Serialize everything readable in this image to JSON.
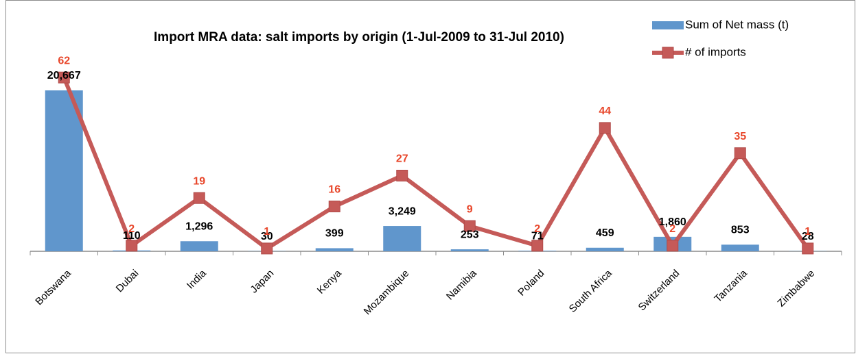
{
  "chart_data": {
    "type": "combo",
    "title": "Import MRA data: salt imports by origin (1-Jul-2009 to 31-Jul 2010)",
    "categories": [
      "Botswana",
      "Dubai",
      "India",
      "Japan",
      "Kenya",
      "Mozambique",
      "Namibia",
      "Poland",
      "South Africa",
      "Switzerland",
      "Tanzania",
      "Zimbabwe"
    ],
    "series": [
      {
        "name": "Sum of Net mass (t)",
        "type": "bar",
        "color": "#6096cc",
        "values": [
          20667,
          110,
          1296,
          30,
          399,
          3249,
          253,
          71,
          459,
          1860,
          853,
          28
        ],
        "value_labels": [
          "20,667",
          "110",
          "1,296",
          "30",
          "399",
          "3,249",
          "253",
          "71",
          "459",
          "1,860",
          "853",
          "28"
        ]
      },
      {
        "name": "# of imports",
        "type": "line",
        "axis": "y2",
        "color": "#c55a58",
        "label_color": "#e8462a",
        "values": [
          62,
          2,
          19,
          1,
          16,
          27,
          9,
          2,
          44,
          2,
          35,
          1
        ]
      }
    ],
    "ylim": [
      0,
      27000
    ],
    "y2lim": [
      0,
      75
    ],
    "legend": "top-right"
  }
}
